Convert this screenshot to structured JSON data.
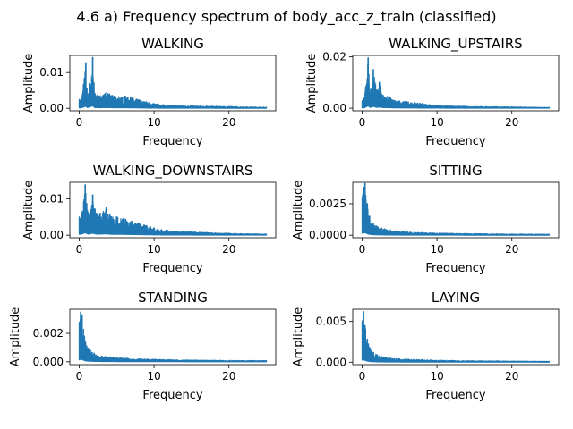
{
  "figure": {
    "suptitle": "4.6 a) Frequency spectrum of body_acc_z_train (classified)"
  },
  "chart_data": [
    {
      "type": "line",
      "title": "WALKING",
      "xlabel": "Frequency",
      "ylabel": "Amplitude",
      "xlim": [
        -1.25,
        26.25
      ],
      "ylim": [
        -0.0007,
        0.0148
      ],
      "xticks": [
        0,
        10,
        20
      ],
      "xtick_labels": [
        "0",
        "10",
        "20"
      ],
      "yticks": [
        0.0,
        0.01
      ],
      "ytick_labels": [
        "0.00",
        "0.01"
      ],
      "color": "#1f77b4",
      "series": [
        {
          "peaks": [
            [
              0.0,
              0.0025
            ],
            [
              0.3,
              0.003
            ],
            [
              0.9,
              0.0127
            ],
            [
              1.1,
              0.004
            ],
            [
              1.8,
              0.0142
            ],
            [
              2.1,
              0.004
            ],
            [
              2.8,
              0.0035
            ],
            [
              3.7,
              0.0045
            ],
            [
              4.4,
              0.0036
            ],
            [
              5.3,
              0.0032
            ],
            [
              6.1,
              0.0034
            ],
            [
              7.0,
              0.0029
            ],
            [
              8.0,
              0.0024
            ],
            [
              9.0,
              0.0018
            ],
            [
              10.0,
              0.0013
            ],
            [
              12.0,
              0.0009
            ],
            [
              15.0,
              0.0007
            ],
            [
              20.0,
              0.0005
            ],
            [
              25.0,
              0.0003
            ]
          ]
        }
      ]
    },
    {
      "type": "line",
      "title": "WALKING_UPSTAIRS",
      "xlabel": "Frequency",
      "ylabel": "Amplitude",
      "xlim": [
        -1.25,
        26.25
      ],
      "ylim": [
        -0.001,
        0.0205
      ],
      "xticks": [
        0,
        10,
        20
      ],
      "xtick_labels": [
        "0",
        "10",
        "20"
      ],
      "yticks": [
        0.0,
        0.02
      ],
      "ytick_labels": [
        "0.00",
        "0.02"
      ],
      "color": "#1f77b4",
      "series": [
        {
          "peaks": [
            [
              0.0,
              0.003
            ],
            [
              0.3,
              0.004
            ],
            [
              0.8,
              0.0195
            ],
            [
              1.1,
              0.006
            ],
            [
              1.5,
              0.015
            ],
            [
              2.0,
              0.007
            ],
            [
              2.3,
              0.01
            ],
            [
              2.8,
              0.005
            ],
            [
              3.6,
              0.0045
            ],
            [
              4.3,
              0.003
            ],
            [
              5.0,
              0.0028
            ],
            [
              6.0,
              0.0025
            ],
            [
              7.0,
              0.0022
            ],
            [
              8.0,
              0.0018
            ],
            [
              9.0,
              0.0014
            ],
            [
              10.0,
              0.0012
            ],
            [
              12.0,
              0.0009
            ],
            [
              15.0,
              0.0007
            ],
            [
              20.0,
              0.0005
            ],
            [
              25.0,
              0.0003
            ]
          ]
        }
      ]
    },
    {
      "type": "line",
      "title": "WALKING_DOWNSTAIRS",
      "xlabel": "Frequency",
      "ylabel": "Amplitude",
      "xlim": [
        -1.25,
        26.25
      ],
      "ylim": [
        -0.0007,
        0.0145
      ],
      "xticks": [
        0,
        10,
        20
      ],
      "xtick_labels": [
        "0",
        "10",
        "20"
      ],
      "yticks": [
        0.0,
        0.01
      ],
      "ytick_labels": [
        "0.00",
        "0.01"
      ],
      "color": "#1f77b4",
      "series": [
        {
          "peaks": [
            [
              0.0,
              0.005
            ],
            [
              0.3,
              0.006
            ],
            [
              0.8,
              0.0138
            ],
            [
              1.2,
              0.006
            ],
            [
              1.8,
              0.011
            ],
            [
              2.3,
              0.006
            ],
            [
              2.8,
              0.006
            ],
            [
              3.6,
              0.0075
            ],
            [
              4.3,
              0.005
            ],
            [
              5.0,
              0.005
            ],
            [
              6.0,
              0.0046
            ],
            [
              7.0,
              0.0038
            ],
            [
              8.0,
              0.0032
            ],
            [
              9.0,
              0.0026
            ],
            [
              10.0,
              0.002
            ],
            [
              11.0,
              0.0015
            ],
            [
              13.0,
              0.0011
            ],
            [
              15.0,
              0.0009
            ],
            [
              20.0,
              0.0005
            ],
            [
              25.0,
              0.0003
            ]
          ]
        }
      ]
    },
    {
      "type": "line",
      "title": "SITTING",
      "xlabel": "Frequency",
      "ylabel": "Amplitude",
      "xlim": [
        -1.25,
        26.25
      ],
      "ylim": [
        -0.0002,
        0.0042
      ],
      "xticks": [
        0,
        10,
        20
      ],
      "xtick_labels": [
        "0",
        "10",
        "20"
      ],
      "yticks": [
        0.0,
        0.0025
      ],
      "ytick_labels": [
        "0.0000",
        "0.0025"
      ],
      "color": "#1f77b4",
      "series": [
        {
          "peaks": [
            [
              0.0,
              0.003
            ],
            [
              0.2,
              0.0038
            ],
            [
              0.4,
              0.0041
            ],
            [
              0.7,
              0.0025
            ],
            [
              1.0,
              0.0015
            ],
            [
              1.5,
              0.0009
            ],
            [
              2.0,
              0.0007
            ],
            [
              3.0,
              0.0005
            ],
            [
              5.0,
              0.0003
            ],
            [
              8.0,
              0.0002
            ],
            [
              12.0,
              0.00015
            ],
            [
              18.0,
              0.0001
            ],
            [
              25.0,
              8e-05
            ]
          ]
        }
      ]
    },
    {
      "type": "line",
      "title": "STANDING",
      "xlabel": "Frequency",
      "ylabel": "Amplitude",
      "xlim": [
        -1.25,
        26.25
      ],
      "ylim": [
        -0.0002,
        0.0037
      ],
      "xticks": [
        0,
        10,
        20
      ],
      "xtick_labels": [
        "0",
        "10",
        "20"
      ],
      "yticks": [
        0.0,
        0.002
      ],
      "ytick_labels": [
        "0.000",
        "0.002"
      ],
      "color": "#1f77b4",
      "series": [
        {
          "peaks": [
            [
              0.0,
              0.0028
            ],
            [
              0.2,
              0.0035
            ],
            [
              0.4,
              0.0033
            ],
            [
              0.7,
              0.0018
            ],
            [
              1.0,
              0.0011
            ],
            [
              1.5,
              0.0008
            ],
            [
              2.0,
              0.0006
            ],
            [
              3.0,
              0.0004
            ],
            [
              5.0,
              0.0003
            ],
            [
              8.0,
              0.0002
            ],
            [
              12.0,
              0.00015
            ],
            [
              18.0,
              0.0001
            ],
            [
              25.0,
              8e-05
            ]
          ]
        }
      ]
    },
    {
      "type": "line",
      "title": "LAYING",
      "xlabel": "Frequency",
      "ylabel": "Amplitude",
      "xlim": [
        -1.25,
        26.25
      ],
      "ylim": [
        -0.0003,
        0.0065
      ],
      "xticks": [
        0,
        10,
        20
      ],
      "xtick_labels": [
        "0",
        "10",
        "20"
      ],
      "yticks": [
        0.0,
        0.005
      ],
      "ytick_labels": [
        "0.000",
        "0.005"
      ],
      "color": "#1f77b4",
      "series": [
        {
          "peaks": [
            [
              0.0,
              0.005
            ],
            [
              0.2,
              0.0062
            ],
            [
              0.4,
              0.0045
            ],
            [
              0.7,
              0.0028
            ],
            [
              1.0,
              0.0018
            ],
            [
              1.5,
              0.0012
            ],
            [
              2.0,
              0.0009
            ],
            [
              3.0,
              0.0006
            ],
            [
              5.0,
              0.0004
            ],
            [
              8.0,
              0.0003
            ],
            [
              12.0,
              0.0002
            ],
            [
              18.0,
              0.00015
            ],
            [
              25.0,
              0.0001
            ]
          ]
        }
      ]
    }
  ]
}
